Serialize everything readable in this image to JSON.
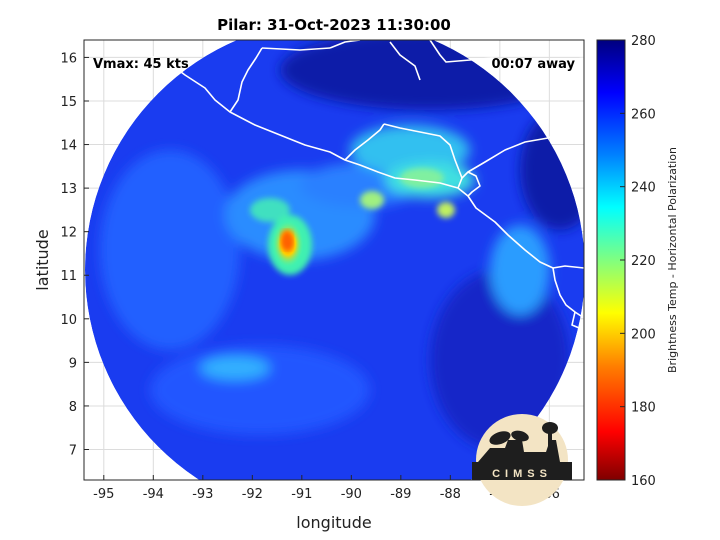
{
  "title": "Pilar: 31-Oct-2023 11:30:00",
  "vmax_label": "Vmax: 45 kts",
  "time_away_label": "00:07 away",
  "xlabel": "longitude",
  "ylabel": "latitude",
  "colorbar": {
    "label": "Brightness Temp - Horizontal Polarization",
    "ticks": [
      "280",
      "260",
      "240",
      "220",
      "200",
      "180",
      "160"
    ],
    "min": 160,
    "max": 280,
    "colors": [
      "#7f0000",
      "#ff0000",
      "#ff8000",
      "#ffff00",
      "#80ff80",
      "#00ffff",
      "#0080ff",
      "#0000ff",
      "#00007f"
    ]
  },
  "logo_text": "CIMSS",
  "map": {
    "lon_range": [
      -95.4,
      -85.3
    ],
    "lat_range": [
      6.3,
      16.4
    ],
    "lon_ticks": [
      "-95",
      "-94",
      "-93",
      "-92",
      "-91",
      "-90",
      "-89",
      "-88",
      "-87",
      "-86"
    ],
    "lat_ticks": [
      "16",
      "15",
      "14",
      "13",
      "12",
      "11",
      "10",
      "9",
      "8",
      "7"
    ],
    "storm_center": [
      -91.2,
      11.5
    ],
    "swath_center": [
      -90.4,
      11.2
    ],
    "swath_radius_deg": 5.0
  }
}
